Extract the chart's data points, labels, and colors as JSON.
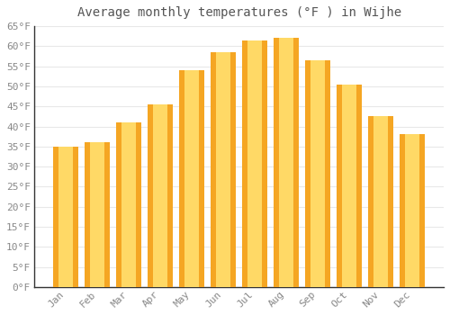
{
  "title": "Average monthly temperatures (°F ) in Wijhe",
  "months": [
    "Jan",
    "Feb",
    "Mar",
    "Apr",
    "May",
    "Jun",
    "Jul",
    "Aug",
    "Sep",
    "Oct",
    "Nov",
    "Dec"
  ],
  "values": [
    35,
    36,
    41,
    45.5,
    54,
    58.5,
    61.5,
    62,
    56.5,
    50.5,
    42.5,
    38
  ],
  "bar_color_center": "#FFD966",
  "bar_color_edge": "#F5A623",
  "background_color": "#FFFFFF",
  "grid_color": "#E8E8E8",
  "tick_label_color": "#888888",
  "title_color": "#555555",
  "spine_color": "#333333",
  "ylim": [
    0,
    65
  ],
  "yticks": [
    0,
    5,
    10,
    15,
    20,
    25,
    30,
    35,
    40,
    45,
    50,
    55,
    60,
    65
  ],
  "ytick_labels": [
    "0°F",
    "5°F",
    "10°F",
    "15°F",
    "20°F",
    "25°F",
    "30°F",
    "35°F",
    "40°F",
    "45°F",
    "50°F",
    "55°F",
    "60°F",
    "65°F"
  ],
  "title_fontsize": 10,
  "tick_fontsize": 8,
  "bar_width": 0.82
}
